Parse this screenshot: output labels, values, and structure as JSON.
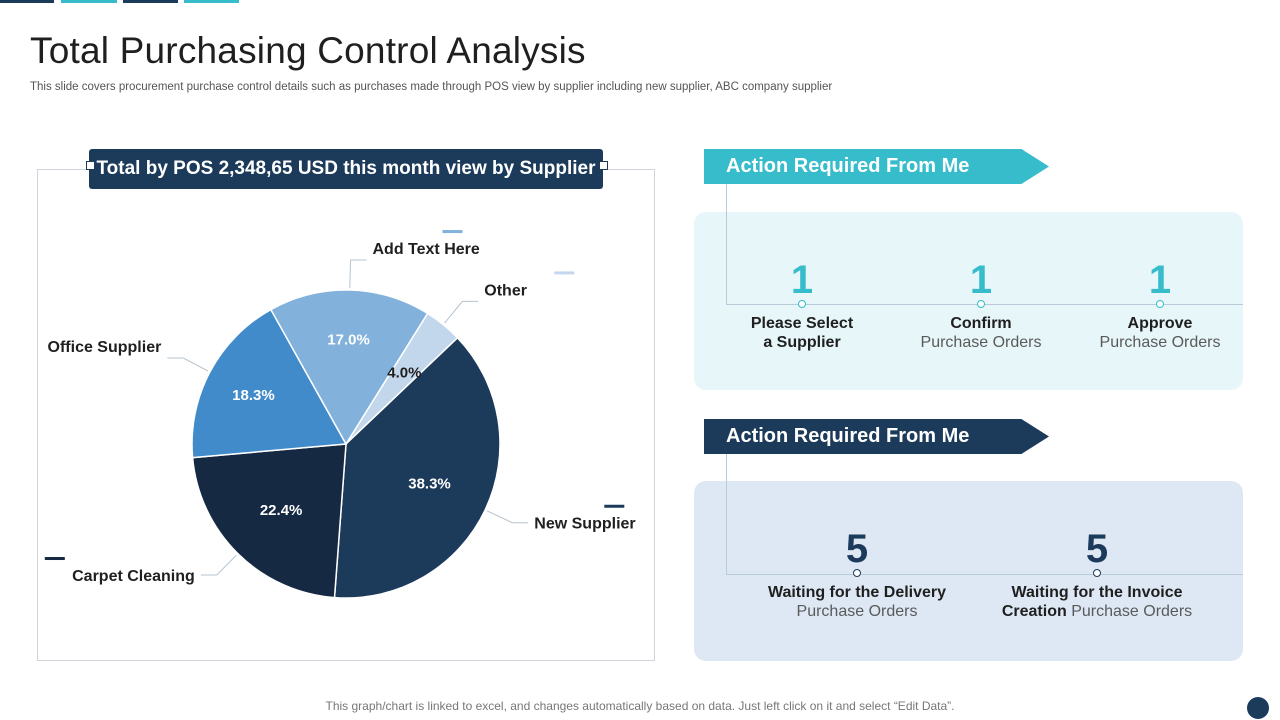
{
  "title": "Total Purchasing Control Analysis",
  "subtitle": "This slide covers procurement purchase control details such as purchases made through POS view by supplier including new supplier, ABC company supplier",
  "chart_header": "Total by POS 2,348,65 USD this month view by Supplier",
  "chart_data": {
    "type": "pie",
    "title": "Total by POS 2,348,65 USD this month view by Supplier",
    "slices": [
      {
        "label": "Other",
        "value": 4.0,
        "value_label": "4.0%",
        "color": "#c3d7ec"
      },
      {
        "label": "New Supplier",
        "value": 38.3,
        "value_label": "38.3%",
        "color": "#1c3a5a"
      },
      {
        "label": "Carpet Cleaning",
        "value": 22.4,
        "value_label": "22.4%",
        "color": "#152943"
      },
      {
        "label": "Office Supplier",
        "value": 18.3,
        "value_label": "18.3%",
        "color": "#428bca"
      },
      {
        "label": "Add Text Here",
        "value": 17.0,
        "value_label": "17.0%",
        "color": "#82b1dc"
      }
    ]
  },
  "action_panel_1": {
    "heading": "Action Required From Me",
    "color": "#36bccb",
    "items": [
      {
        "value": "1",
        "line1": "Please Select",
        "line2": "a Supplier"
      },
      {
        "value": "1",
        "line1": "Confirm",
        "line2": "Purchase Orders"
      },
      {
        "value": "1",
        "line1": "Approve",
        "line2": "Purchase Orders"
      }
    ]
  },
  "action_panel_2": {
    "heading": "Action Required From Me",
    "color": "#1c3a5a",
    "items": [
      {
        "value": "5",
        "line1": "Waiting for the Delivery",
        "line2": "Purchase Orders"
      },
      {
        "value": "5",
        "line1": "Waiting for the Invoice",
        "line2_bold": "Creation",
        "line2": "Purchase Orders"
      }
    ]
  },
  "footer": "This graph/chart is linked to excel, and changes automatically based on data. Just left click on it and select “Edit Data”."
}
